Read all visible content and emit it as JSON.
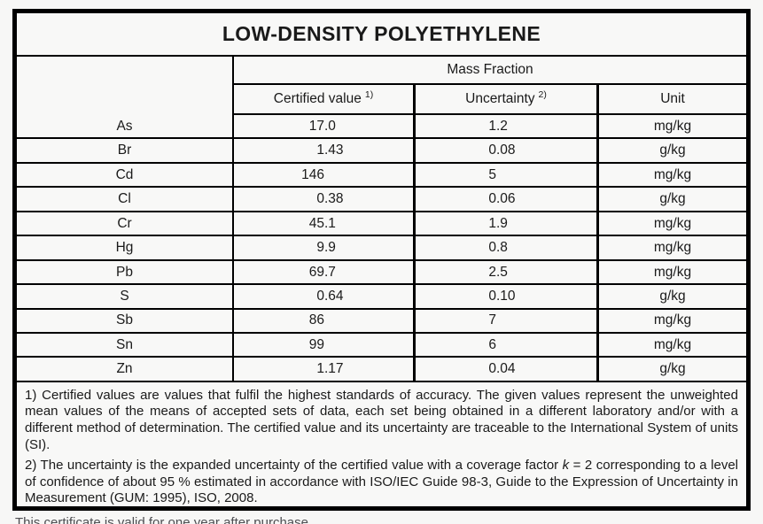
{
  "title": "LOW-DENSITY POLYETHYLENE",
  "table": {
    "group_header": "Mass Fraction",
    "columns": {
      "certified_label": "Certified value",
      "certified_sup": "1)",
      "uncertainty_label": "Uncertainty",
      "uncertainty_sup": "2)",
      "unit_label": "Unit"
    },
    "rows": [
      {
        "element": "As",
        "certified": "17.0",
        "uncertainty": "1.2",
        "unit": "mg/kg"
      },
      {
        "element": "Br",
        "certified": "1.43",
        "uncertainty": "0.08",
        "unit": "g/kg"
      },
      {
        "element": "Cd",
        "certified": "146",
        "uncertainty": "5",
        "unit": "mg/kg"
      },
      {
        "element": "Cl",
        "certified": "0.38",
        "uncertainty": "0.06",
        "unit": "g/kg"
      },
      {
        "element": "Cr",
        "certified": "45.1",
        "uncertainty": "1.9",
        "unit": "mg/kg"
      },
      {
        "element": "Hg",
        "certified": "9.9",
        "uncertainty": "0.8",
        "unit": "mg/kg"
      },
      {
        "element": "Pb",
        "certified": "69.7",
        "uncertainty": "2.5",
        "unit": "mg/kg"
      },
      {
        "element": "S",
        "certified": "0.64",
        "uncertainty": "0.10",
        "unit": "g/kg"
      },
      {
        "element": "Sb",
        "certified": "86",
        "uncertainty": "7",
        "unit": "mg/kg"
      },
      {
        "element": "Sn",
        "certified": "99",
        "uncertainty": "6",
        "unit": "mg/kg"
      },
      {
        "element": "Zn",
        "certified": "1.17",
        "uncertainty": "0.04",
        "unit": "g/kg"
      }
    ]
  },
  "footnotes": {
    "fn1": "1) Certified values are values that fulfil the highest standards of accuracy. The given values represent the unweighted mean values of the means of accepted sets of data, each set being obtained in a different laboratory and/or with a different method of determination. The certified value and its uncertainty are traceable to the International System of units (SI).",
    "fn2_pre": "2) The uncertainty is the expanded uncertainty of the certified value with a coverage factor ",
    "fn2_k": "k",
    "fn2_post": " = 2 corresponding to a level of confidence of about 95 % estimated in accordance with ISO/IEC Guide 98-3, Guide to the Expression of Uncertainty in Measurement (GUM: 1995), ISO, 2008."
  },
  "partial_bottom_line": "This certificate is valid for one year after purchase.",
  "colors": {
    "paper": "#f8f8f7",
    "border": "#000000",
    "text": "#1a1a1a"
  }
}
